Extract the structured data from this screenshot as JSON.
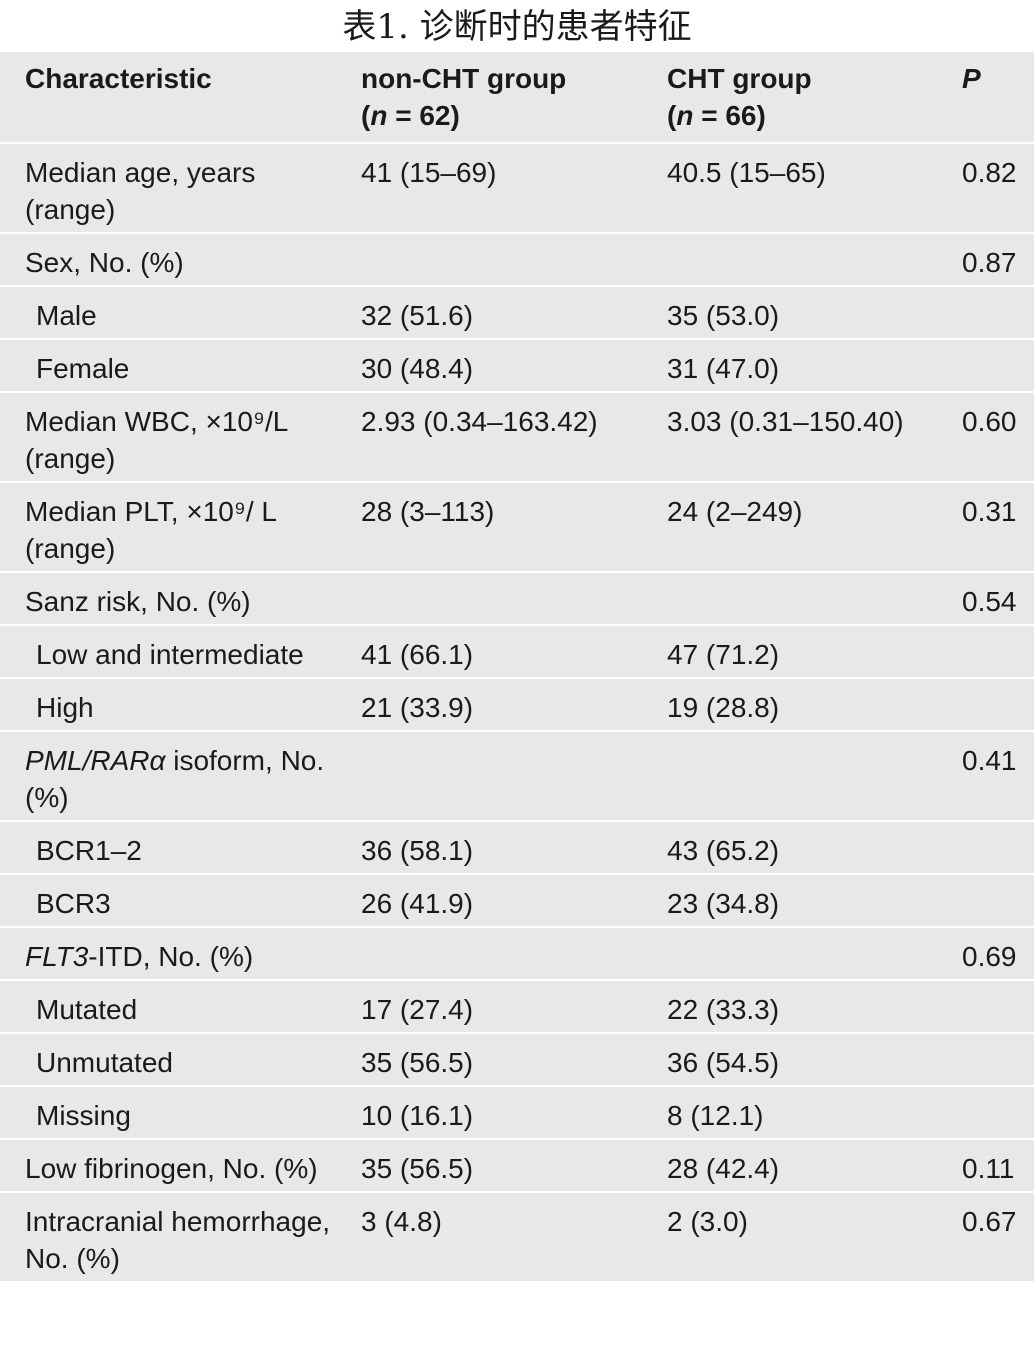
{
  "title": "表1. 诊断时的患者特征",
  "table": {
    "header": [
      [
        [
          "Characteristic"
        ]
      ],
      [
        [
          "non-CHT group"
        ],
        [
          "(",
          {
            "text": "n",
            "italic": true
          },
          " = 62)"
        ]
      ],
      [
        [
          "CHT group"
        ],
        [
          "(",
          {
            "text": "n",
            "italic": true
          },
          " = 66)"
        ]
      ],
      [
        [
          {
            "text": "P",
            "italic": true
          }
        ]
      ]
    ],
    "rows": [
      {
        "cells": [
          "Median age, years (range)",
          "41 (15–69)",
          "40.5 (15–65)",
          "0.82"
        ]
      },
      {
        "cells": [
          "Sex, No. (%)",
          "",
          "",
          "0.87"
        ]
      },
      {
        "cells": [
          "Male",
          "32 (51.6)",
          "35 (53.0)",
          ""
        ],
        "indent": true
      },
      {
        "cells": [
          "Female",
          "30 (48.4)",
          "31 (47.0)",
          ""
        ],
        "indent": true
      },
      {
        "cells": [
          "Median WBC, ×10⁹/L (range)",
          "2.93 (0.34–163.42)",
          "3.03 (0.31–150.40)",
          "0.60"
        ]
      },
      {
        "cells": [
          "Median PLT, ×10⁹/ L (range)",
          "28 (3–113)",
          "24 (2–249)",
          "0.31"
        ]
      },
      {
        "cells": [
          "Sanz risk, No. (%)",
          "",
          "",
          "0.54"
        ]
      },
      {
        "cells": [
          "Low and intermediate",
          "41 (66.1)",
          "47 (71.2)",
          ""
        ],
        "indent": true
      },
      {
        "cells": [
          "High",
          "21 (33.9)",
          "19 (28.8)",
          ""
        ],
        "indent": true
      },
      {
        "cells": [
          [
            {
              "text": "PML/RARα",
              "italic": true
            },
            " isoform, No. (%)"
          ],
          "",
          "",
          "0.41"
        ]
      },
      {
        "cells": [
          "BCR1–2",
          "36 (58.1)",
          "43 (65.2)",
          ""
        ],
        "indent": true
      },
      {
        "cells": [
          "BCR3",
          "26 (41.9)",
          "23 (34.8)",
          ""
        ],
        "indent": true
      },
      {
        "cells": [
          [
            {
              "text": "FLT3",
              "italic": true
            },
            "-ITD, No. (%)"
          ],
          "",
          "",
          "0.69"
        ]
      },
      {
        "cells": [
          "Mutated",
          "17 (27.4)",
          "22 (33.3)",
          ""
        ],
        "indent": true
      },
      {
        "cells": [
          "Unmutated",
          "35 (56.5)",
          "36 (54.5)",
          ""
        ],
        "indent": true
      },
      {
        "cells": [
          "Missing",
          "10 (16.1)",
          "8 (12.1)",
          ""
        ],
        "indent": true
      },
      {
        "cells": [
          "Low fibrinogen, No. (%)",
          "35 (56.5)",
          "28 (42.4)",
          "0.11"
        ]
      },
      {
        "cells": [
          "Intracranial hemorrhage, No. (%)",
          "3 (4.8)",
          "2 (3.0)",
          "0.67"
        ]
      }
    ]
  }
}
